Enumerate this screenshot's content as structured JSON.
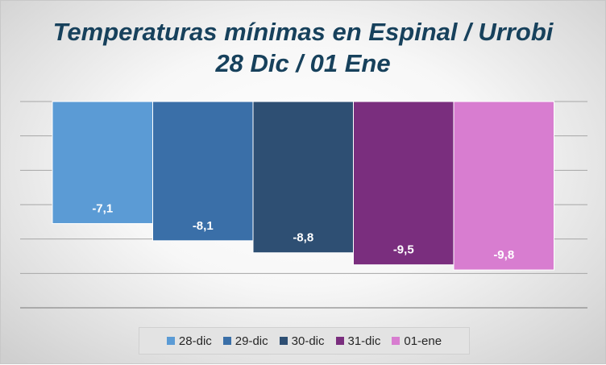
{
  "chart_data": {
    "type": "bar",
    "title_line1": "Temperaturas mínimas en Espinal / Urrobi",
    "title_line2": "28 Dic / 01 Ene",
    "categories": [
      "28-dic",
      "29-dic",
      "30-dic",
      "31-dic",
      "01-ene"
    ],
    "values": [
      -7.1,
      -8.1,
      -8.8,
      -9.5,
      -9.8
    ],
    "data_labels": [
      "-7,1",
      "-8,1",
      "-8,8",
      "-9,5",
      "-9,8"
    ],
    "colors": [
      "#5b9bd5",
      "#3a6fa8",
      "#2e4f73",
      "#7a2e7e",
      "#d87dd0"
    ],
    "ylim": [
      -12,
      0
    ],
    "grid": true,
    "legend_position": "bottom"
  }
}
